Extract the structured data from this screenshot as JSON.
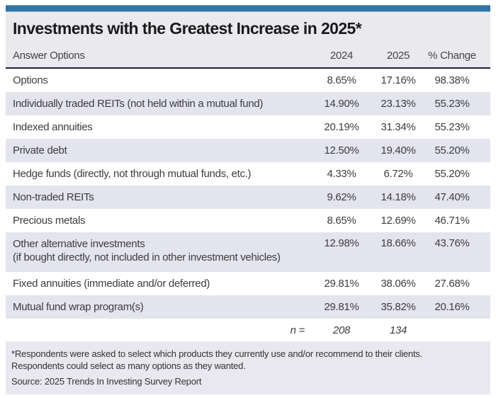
{
  "colors": {
    "accent_bar": "#2e76a7",
    "panel_bg": "#e9e9ee",
    "stripe_bg": "#e3e4ee",
    "footnote_bg": "#e8e8ee",
    "divider": "#20203a",
    "title_text": "#1a1a1a",
    "body_text": "#3d3d3d"
  },
  "table": {
    "title": "Investments with the Greatest Increase in 2025*",
    "columns": [
      "Answer Options",
      "2024",
      "2025",
      "% Change"
    ],
    "rows": [
      {
        "label": "Options",
        "v2024": "8.65%",
        "v2025": "17.16%",
        "change": "98.38%"
      },
      {
        "label": "Individually traded REITs (not held within a mutual fund)",
        "v2024": "14.90%",
        "v2025": "23.13%",
        "change": "55.23%"
      },
      {
        "label": "Indexed annuities",
        "v2024": "20.19%",
        "v2025": "31.34%",
        "change": "55.23%"
      },
      {
        "label": "Private debt",
        "v2024": "12.50%",
        "v2025": "19.40%",
        "change": "55.20%"
      },
      {
        "label": "Hedge funds (directly, not through mutual funds, etc.)",
        "v2024": "4.33%",
        "v2025": "6.72%",
        "change": "55.20%"
      },
      {
        "label": "Non-traded REITs",
        "v2024": "9.62%",
        "v2025": "14.18%",
        "change": "47.40%"
      },
      {
        "label": "Precious metals",
        "v2024": "8.65%",
        "v2025": "12.69%",
        "change": "46.71%"
      },
      {
        "label": "Other alternative investments",
        "label2": "(if bought directly, not included in other investment vehicles)",
        "v2024": "12.98%",
        "v2025": "18.66%",
        "change": "43.76%"
      },
      {
        "label": "Fixed annuities (immediate and/or deferred)",
        "v2024": "29.81%",
        "v2025": "38.06%",
        "change": "27.68%"
      },
      {
        "label": "Mutual fund wrap program(s)",
        "v2024": "29.81%",
        "v2025": "35.82%",
        "change": "20.16%"
      }
    ],
    "n_row": {
      "label": "n =",
      "v2024": "208",
      "v2025": "134"
    }
  },
  "footnote": {
    "line1": "*Respondents were asked to select which products they currently use and/or recommend to their clients.",
    "line2": "Respondents could select as many options as they wanted.",
    "source": "Source: 2025 Trends In Investing Survey Report"
  },
  "chart_data": {
    "type": "table",
    "title": "Investments with the Greatest Increase in 2025*",
    "columns": [
      "Answer Options",
      "2024",
      "2025",
      "% Change"
    ],
    "units": "percent",
    "rows": [
      {
        "answer_option": "Options",
        "y2024": 8.65,
        "y2025": 17.16,
        "pct_change": 98.38
      },
      {
        "answer_option": "Individually traded REITs (not held within a mutual fund)",
        "y2024": 14.9,
        "y2025": 23.13,
        "pct_change": 55.23
      },
      {
        "answer_option": "Indexed annuities",
        "y2024": 20.19,
        "y2025": 31.34,
        "pct_change": 55.23
      },
      {
        "answer_option": "Private debt",
        "y2024": 12.5,
        "y2025": 19.4,
        "pct_change": 55.2
      },
      {
        "answer_option": "Hedge funds (directly, not through mutual funds, etc.)",
        "y2024": 4.33,
        "y2025": 6.72,
        "pct_change": 55.2
      },
      {
        "answer_option": "Non-traded REITs",
        "y2024": 9.62,
        "y2025": 14.18,
        "pct_change": 47.4
      },
      {
        "answer_option": "Precious metals",
        "y2024": 8.65,
        "y2025": 12.69,
        "pct_change": 46.71
      },
      {
        "answer_option": "Other alternative investments (if bought directly, not included in other investment vehicles)",
        "y2024": 12.98,
        "y2025": 18.66,
        "pct_change": 43.76
      },
      {
        "answer_option": "Fixed annuities (immediate and/or deferred)",
        "y2024": 29.81,
        "y2025": 38.06,
        "pct_change": 27.68
      },
      {
        "answer_option": "Mutual fund wrap program(s)",
        "y2024": 29.81,
        "y2025": 35.82,
        "pct_change": 20.16
      }
    ],
    "sample_sizes": {
      "label": "n =",
      "y2024": 208,
      "y2025": 134
    },
    "notes": [
      "*Respondents were asked to select which products they currently use and/or recommend to their clients.",
      "Respondents could select as many options as they wanted."
    ],
    "source": "Source: 2025 Trends In Investing Survey Report"
  }
}
